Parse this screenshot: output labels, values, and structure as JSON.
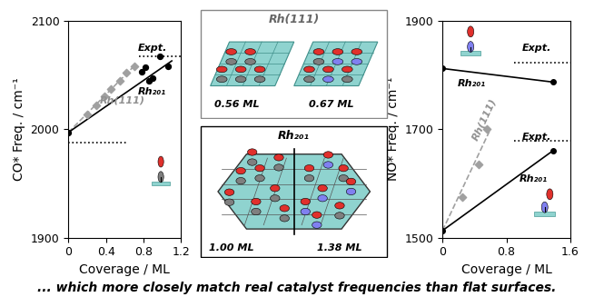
{
  "chart_data": [
    {
      "type": "line",
      "y_label": "CO* Freq. / cm⁻¹",
      "x_label": "Coverage / ML",
      "xlim": [
        0,
        1.2
      ],
      "xticks": [
        0,
        0.4,
        0.8,
        1.2
      ],
      "ylim": [
        1900,
        2100
      ],
      "yticks": [
        1900,
        2000,
        2100
      ],
      "grid": false,
      "series": [
        {
          "type": "scatter",
          "color": "#a0a0a0",
          "marker": "diamond",
          "x": [
            0.2,
            0.3,
            0.38,
            0.45,
            0.55,
            0.62,
            0.7
          ],
          "values": [
            2014,
            2022,
            2030,
            2037,
            2045,
            2052,
            2058
          ]
        },
        {
          "type": "line",
          "color": "#a0a0a0",
          "line_style": "dashed",
          "x": [
            0,
            0.72
          ],
          "values": [
            1997,
            2060
          ]
        },
        {
          "type": "line",
          "color": "#000000",
          "line_style": "solid",
          "x": [
            0,
            1.1
          ],
          "values": [
            1997,
            2063
          ]
        },
        {
          "type": "scatter",
          "color": "#000000",
          "marker": "circle",
          "x": [
            0,
            0.78,
            0.82,
            0.86,
            0.9,
            0.97,
            1.06
          ],
          "values": [
            1997,
            2053,
            2057,
            2045,
            2047,
            2067,
            2058
          ]
        },
        {
          "type": "line",
          "color": "#000000",
          "line_style": "dotted",
          "x": [
            0.75,
            1.2
          ],
          "values": [
            2067,
            2067
          ]
        },
        {
          "type": "line",
          "color": "#000000",
          "line_style": "dotted",
          "x": [
            0,
            0.62
          ],
          "values": [
            1988,
            1988
          ]
        }
      ],
      "annotations": [
        {
          "text": "Expt.",
          "color": "#000000"
        },
        {
          "text": "Rh(111)",
          "color": "#909090"
        },
        {
          "text": "Rh₂₀₁",
          "color": "#000000"
        }
      ]
    },
    {
      "type": "line",
      "y_label": "NO* Freq. / cm⁻¹",
      "x_label": "Coverage / ML",
      "xlim": [
        0,
        1.6
      ],
      "xticks": [
        0,
        0.8,
        1.6
      ],
      "ylim": [
        1500,
        1900
      ],
      "yticks": [
        1500,
        1700,
        1900
      ],
      "grid": false,
      "series": [
        {
          "type": "scatter",
          "color": "#a0a0a0",
          "marker": "diamond",
          "x": [
            0.25,
            0.45,
            0.55
          ],
          "values": [
            1575,
            1635,
            1700
          ]
        },
        {
          "type": "line",
          "color": "#a0a0a0",
          "line_style": "dashed",
          "x": [
            0,
            0.6
          ],
          "values": [
            1513,
            1700
          ]
        },
        {
          "type": "line",
          "color": "#000000",
          "line_style": "solid",
          "marker": "circle",
          "x": [
            0,
            1.38
          ],
          "values": [
            1812,
            1787
          ]
        },
        {
          "type": "line",
          "color": "#000000",
          "line_style": "solid",
          "marker": "circle",
          "x": [
            0,
            1.38
          ],
          "values": [
            1513,
            1660
          ]
        },
        {
          "type": "line",
          "color": "#000000",
          "line_style": "dotted",
          "x": [
            0.9,
            1.6
          ],
          "values": [
            1822,
            1822
          ]
        },
        {
          "type": "line",
          "color": "#000000",
          "line_style": "dotted",
          "x": [
            0.9,
            1.6
          ],
          "values": [
            1678,
            1678
          ]
        }
      ],
      "annotations": [
        {
          "text": "Expt.",
          "color": "#000000"
        },
        {
          "text": "Expt.",
          "color": "#000000"
        },
        {
          "text": "Rh₂₀₁",
          "color": "#000000"
        },
        {
          "text": "Rh(111)",
          "color": "#909090"
        },
        {
          "text": "Rh₂₀₁",
          "color": "#000000"
        }
      ]
    }
  ],
  "diagram": {
    "top_panel": {
      "title": "Rh(111)",
      "labels": [
        "0.56 ML",
        "0.67 ML"
      ]
    },
    "bottom_panel": {
      "title": "Rh₂₀₁",
      "labels": [
        "1.00 ML",
        "1.38 ML"
      ]
    }
  },
  "caption": "... which more closely match real catalyst frequencies than flat surfaces."
}
